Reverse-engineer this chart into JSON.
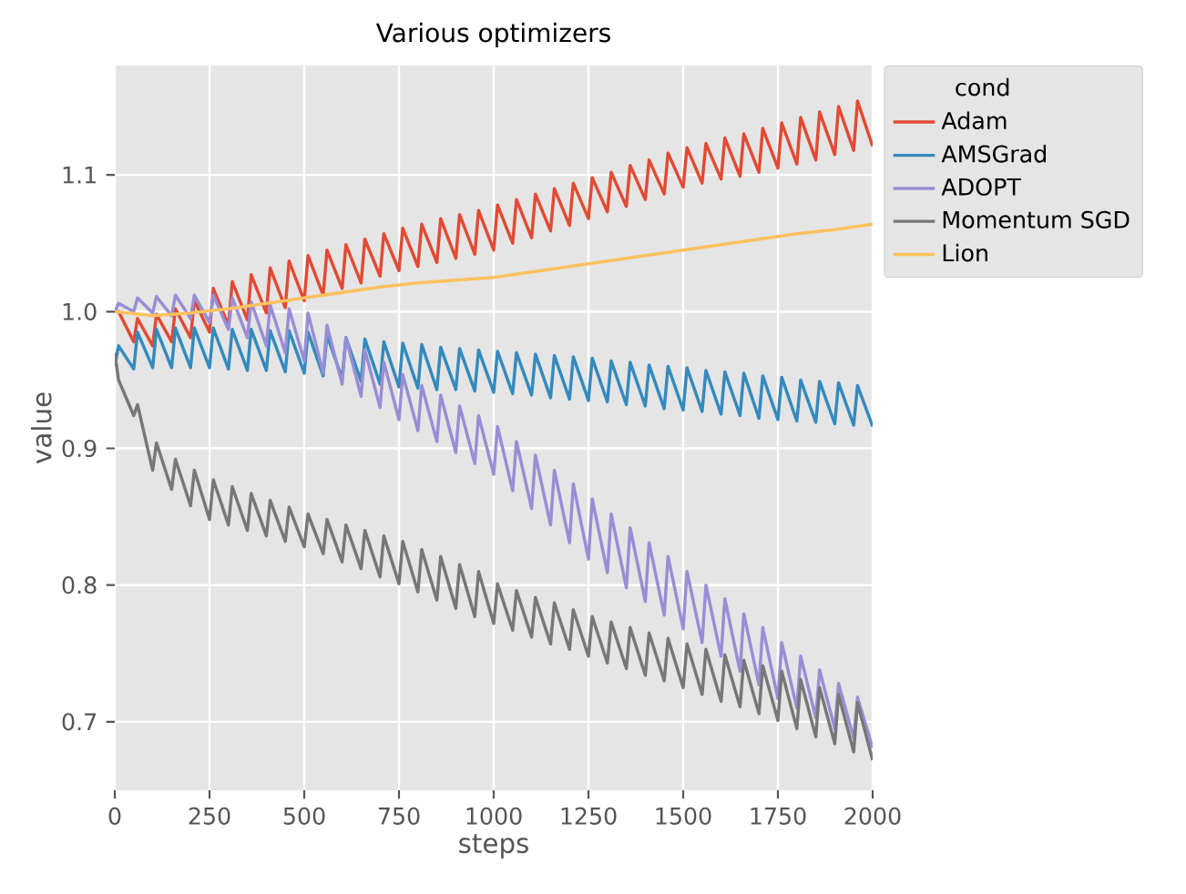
{
  "chart_data": {
    "type": "line",
    "title": "Various optimizers",
    "xlabel": "steps",
    "ylabel": "value",
    "legend_title": "cond",
    "legend": "top right",
    "grid": true,
    "xlim": [
      0,
      2000
    ],
    "ylim": [
      0.65,
      1.18
    ],
    "xticks": [
      0,
      250,
      500,
      750,
      1000,
      1250,
      1500,
      1750,
      2000
    ],
    "yticks": [
      0.7,
      0.8,
      0.9,
      {
        "value": 1.0,
        "label": "1.0"
      },
      1.1
    ],
    "x": [
      0,
      10,
      50,
      60,
      100,
      110,
      150,
      160,
      200,
      210,
      250,
      260,
      300,
      310,
      350,
      360,
      400,
      410,
      450,
      460,
      500,
      510,
      550,
      560,
      600,
      610,
      650,
      660,
      700,
      710,
      750,
      760,
      800,
      810,
      850,
      860,
      900,
      910,
      950,
      960,
      1000,
      1010,
      1050,
      1060,
      1100,
      1110,
      1150,
      1160,
      1200,
      1210,
      1250,
      1260,
      1300,
      1310,
      1350,
      1360,
      1400,
      1410,
      1450,
      1460,
      1500,
      1510,
      1550,
      1560,
      1600,
      1610,
      1650,
      1660,
      1700,
      1710,
      1750,
      1760,
      1800,
      1810,
      1850,
      1860,
      1900,
      1910,
      1950,
      1960,
      2000
    ],
    "series": [
      {
        "name": "Adam",
        "color": "#e24a33",
        "values": [
          1.0,
          1.0,
          0.978,
          0.995,
          0.975,
          0.998,
          0.978,
          1.002,
          0.981,
          1.008,
          0.985,
          1.017,
          0.99,
          1.022,
          0.994,
          1.027,
          0.999,
          1.032,
          1.003,
          1.037,
          1.008,
          1.041,
          1.012,
          1.045,
          1.017,
          1.049,
          1.021,
          1.053,
          1.026,
          1.057,
          1.03,
          1.061,
          1.033,
          1.064,
          1.036,
          1.068,
          1.039,
          1.071,
          1.042,
          1.074,
          1.045,
          1.078,
          1.05,
          1.082,
          1.054,
          1.086,
          1.059,
          1.09,
          1.063,
          1.094,
          1.068,
          1.098,
          1.073,
          1.102,
          1.077,
          1.107,
          1.082,
          1.111,
          1.086,
          1.116,
          1.091,
          1.12,
          1.094,
          1.123,
          1.097,
          1.127,
          1.099,
          1.13,
          1.102,
          1.134,
          1.105,
          1.138,
          1.108,
          1.142,
          1.111,
          1.146,
          1.115,
          1.15,
          1.118,
          1.154,
          1.121
        ]
      },
      {
        "name": "AMSGrad",
        "color": "#348abd",
        "values": [
          0.96,
          0.975,
          0.958,
          0.985,
          0.959,
          0.987,
          0.959,
          0.988,
          0.959,
          0.988,
          0.959,
          0.988,
          0.958,
          0.987,
          0.957,
          0.987,
          0.957,
          0.986,
          0.956,
          0.986,
          0.955,
          0.985,
          0.953,
          0.983,
          0.951,
          0.981,
          0.949,
          0.98,
          0.947,
          0.978,
          0.945,
          0.977,
          0.944,
          0.976,
          0.943,
          0.974,
          0.943,
          0.973,
          0.942,
          0.972,
          0.941,
          0.971,
          0.94,
          0.97,
          0.939,
          0.969,
          0.937,
          0.968,
          0.936,
          0.967,
          0.935,
          0.966,
          0.934,
          0.964,
          0.932,
          0.963,
          0.931,
          0.961,
          0.929,
          0.96,
          0.928,
          0.959,
          0.927,
          0.957,
          0.925,
          0.956,
          0.924,
          0.955,
          0.922,
          0.953,
          0.921,
          0.952,
          0.92,
          0.95,
          0.919,
          0.949,
          0.918,
          0.948,
          0.917,
          0.946,
          0.916
        ]
      },
      {
        "name": "ADOPT",
        "color": "#988ed5",
        "values": [
          1.0,
          1.006,
          1.0,
          1.01,
          0.999,
          1.011,
          0.997,
          1.012,
          0.995,
          1.012,
          0.992,
          1.012,
          0.987,
          1.01,
          0.981,
          1.007,
          0.975,
          1.005,
          0.97,
          1.002,
          0.964,
          0.999,
          0.955,
          0.99,
          0.947,
          0.981,
          0.938,
          0.972,
          0.93,
          0.963,
          0.921,
          0.954,
          0.913,
          0.946,
          0.905,
          0.939,
          0.897,
          0.931,
          0.889,
          0.924,
          0.881,
          0.916,
          0.869,
          0.905,
          0.856,
          0.895,
          0.844,
          0.884,
          0.831,
          0.874,
          0.819,
          0.863,
          0.809,
          0.852,
          0.798,
          0.842,
          0.788,
          0.831,
          0.778,
          0.821,
          0.768,
          0.81,
          0.758,
          0.8,
          0.748,
          0.79,
          0.737,
          0.779,
          0.727,
          0.769,
          0.717,
          0.758,
          0.71,
          0.748,
          0.703,
          0.738,
          0.695,
          0.728,
          0.688,
          0.718,
          0.681
        ]
      },
      {
        "name": "Momentum SGD",
        "color": "#777777",
        "values": [
          0.97,
          0.95,
          0.924,
          0.932,
          0.884,
          0.904,
          0.87,
          0.892,
          0.858,
          0.884,
          0.848,
          0.877,
          0.844,
          0.872,
          0.84,
          0.867,
          0.836,
          0.862,
          0.832,
          0.857,
          0.828,
          0.852,
          0.823,
          0.848,
          0.817,
          0.844,
          0.812,
          0.84,
          0.806,
          0.836,
          0.801,
          0.832,
          0.795,
          0.826,
          0.789,
          0.821,
          0.783,
          0.815,
          0.777,
          0.81,
          0.772,
          0.801,
          0.767,
          0.796,
          0.762,
          0.791,
          0.757,
          0.787,
          0.753,
          0.782,
          0.748,
          0.777,
          0.743,
          0.773,
          0.739,
          0.769,
          0.734,
          0.765,
          0.73,
          0.761,
          0.725,
          0.757,
          0.72,
          0.753,
          0.715,
          0.749,
          0.711,
          0.745,
          0.706,
          0.741,
          0.701,
          0.737,
          0.695,
          0.731,
          0.689,
          0.725,
          0.684,
          0.72,
          0.678,
          0.714,
          0.672
        ]
      },
      {
        "name": "Lion",
        "color": "#fbc15e",
        "x": [
          0,
          100,
          200,
          300,
          400,
          500,
          600,
          700,
          800,
          900,
          1000,
          1100,
          1200,
          1300,
          1400,
          1500,
          1600,
          1700,
          1800,
          1900,
          2000
        ],
        "values": [
          1.0,
          0.997,
          0.999,
          1.002,
          1.006,
          1.01,
          1.014,
          1.018,
          1.021,
          1.023,
          1.025,
          1.029,
          1.033,
          1.037,
          1.041,
          1.045,
          1.049,
          1.053,
          1.057,
          1.06,
          1.064
        ]
      }
    ]
  }
}
